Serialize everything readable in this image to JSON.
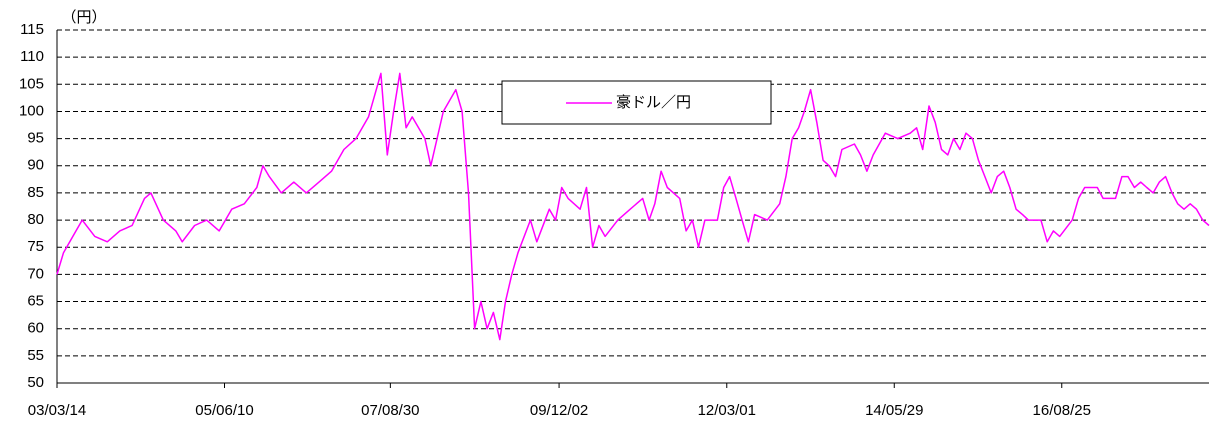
{
  "chart_data": {
    "type": "line",
    "ylabel": "（円）",
    "x": [
      "2003-03-14",
      "2003-04-15",
      "2003-06-15",
      "2003-07-15",
      "2003-09-15",
      "2003-11-15",
      "2004-01-15",
      "2004-03-15",
      "2004-05-15",
      "2004-06-15",
      "2004-08-15",
      "2004-10-15",
      "2004-11-15",
      "2005-01-15",
      "2005-03-15",
      "2005-05-15",
      "2005-07-15",
      "2005-09-15",
      "2005-11-15",
      "2005-12-15",
      "2006-01-15",
      "2006-03-15",
      "2006-05-15",
      "2006-07-15",
      "2006-09-15",
      "2006-11-15",
      "2007-01-15",
      "2007-03-15",
      "2007-05-15",
      "2007-07-15",
      "2007-08-15",
      "2007-09-15",
      "2007-10-15",
      "2007-11-15",
      "2007-12-15",
      "2008-02-15",
      "2008-03-15",
      "2008-05-15",
      "2008-07-15",
      "2008-08-15",
      "2008-09-15",
      "2008-10-15",
      "2008-11-15",
      "2008-12-15",
      "2009-01-15",
      "2009-02-15",
      "2009-03-15",
      "2009-04-15",
      "2009-05-15",
      "2009-07-15",
      "2009-08-15",
      "2009-10-15",
      "2009-11-15",
      "2009-12-15",
      "2010-01-15",
      "2010-03-15",
      "2010-04-15",
      "2010-05-15",
      "2010-06-15",
      "2010-07-15",
      "2010-09-15",
      "2010-11-15",
      "2011-01-15",
      "2011-02-15",
      "2011-03-15",
      "2011-04-15",
      "2011-05-15",
      "2011-07-15",
      "2011-08-15",
      "2011-09-15",
      "2011-10-15",
      "2011-11-15",
      "2012-01-15",
      "2012-02-15",
      "2012-03-15",
      "2012-04-15",
      "2012-05-15",
      "2012-06-15",
      "2012-07-15",
      "2012-09-15",
      "2012-11-15",
      "2012-12-15",
      "2013-01-15",
      "2013-02-15",
      "2013-03-15",
      "2013-04-15",
      "2013-05-15",
      "2013-06-15",
      "2013-07-15",
      "2013-08-15",
      "2013-09-15",
      "2013-11-15",
      "2013-12-15",
      "2014-01-15",
      "2014-02-15",
      "2014-04-15",
      "2014-06-15",
      "2014-08-15",
      "2014-09-15",
      "2014-10-15",
      "2014-11-15",
      "2014-12-15",
      "2015-01-15",
      "2015-02-15",
      "2015-03-15",
      "2015-04-15",
      "2015-05-15",
      "2015-06-15",
      "2015-07-15",
      "2015-08-15",
      "2015-09-15",
      "2015-10-15",
      "2015-11-15",
      "2015-12-15",
      "2016-01-15",
      "2016-02-15",
      "2016-03-15",
      "2016-05-15",
      "2016-06-15",
      "2016-07-15",
      "2016-08-15",
      "2016-10-15",
      "2016-11-15",
      "2016-12-15",
      "2017-02-15",
      "2017-03-15",
      "2017-05-15",
      "2017-06-15",
      "2017-07-15",
      "2017-08-15",
      "2017-09-15",
      "2017-10-15",
      "2017-11-15",
      "2017-12-15",
      "2018-01-15",
      "2018-02-15",
      "2018-03-15",
      "2018-04-15",
      "2018-05-15",
      "2018-06-15",
      "2018-07-15",
      "2018-08-15"
    ],
    "series": [
      {
        "name": "豪ドル／円",
        "color": "#ff00ff",
        "values": [
          70,
          74,
          78,
          80,
          77,
          76,
          78,
          79,
          84,
          85,
          80,
          78,
          76,
          79,
          80,
          78,
          82,
          83,
          86,
          90,
          88,
          85,
          87,
          85,
          87,
          89,
          93,
          95,
          99,
          107,
          92,
          100,
          107,
          97,
          99,
          95,
          90,
          100,
          104,
          100,
          85,
          60,
          65,
          60,
          63,
          58,
          65,
          70,
          74,
          80,
          76,
          82,
          80,
          86,
          84,
          82,
          86,
          75,
          79,
          77,
          80,
          82,
          84,
          80,
          83,
          89,
          86,
          84,
          78,
          80,
          75,
          80,
          80,
          86,
          88,
          84,
          80,
          76,
          81,
          80,
          83,
          88,
          95,
          97,
          100,
          104,
          98,
          91,
          90,
          88,
          93,
          94,
          92,
          89,
          92,
          96,
          95,
          96,
          97,
          93,
          101,
          98,
          93,
          92,
          95,
          93,
          96,
          95,
          91,
          88,
          85,
          88,
          89,
          86,
          82,
          81,
          80,
          80,
          76,
          78,
          77,
          80,
          84,
          86,
          86,
          84,
          84,
          88,
          88,
          86,
          87,
          86,
          85,
          87,
          88,
          85,
          83,
          82,
          83,
          82,
          80,
          79
        ]
      }
    ],
    "xlim": [
      "2003-03-14",
      "2018-08-15"
    ],
    "xticks": [
      {
        "value": "2003-03-14",
        "label": "03/03/14"
      },
      {
        "value": "2005-06-10",
        "label": "05/06/10"
      },
      {
        "value": "2007-08-30",
        "label": "07/08/30"
      },
      {
        "value": "2009-12-02",
        "label": "09/12/02"
      },
      {
        "value": "2012-03-01",
        "label": "12/03/01"
      },
      {
        "value": "2014-05-29",
        "label": "14/05/29"
      },
      {
        "value": "2016-08-25",
        "label": "16/08/25"
      }
    ],
    "ylim": [
      50,
      115
    ],
    "yticks": [
      50,
      55,
      60,
      65,
      70,
      75,
      80,
      85,
      90,
      95,
      100,
      105,
      110,
      115
    ],
    "grid": true
  }
}
